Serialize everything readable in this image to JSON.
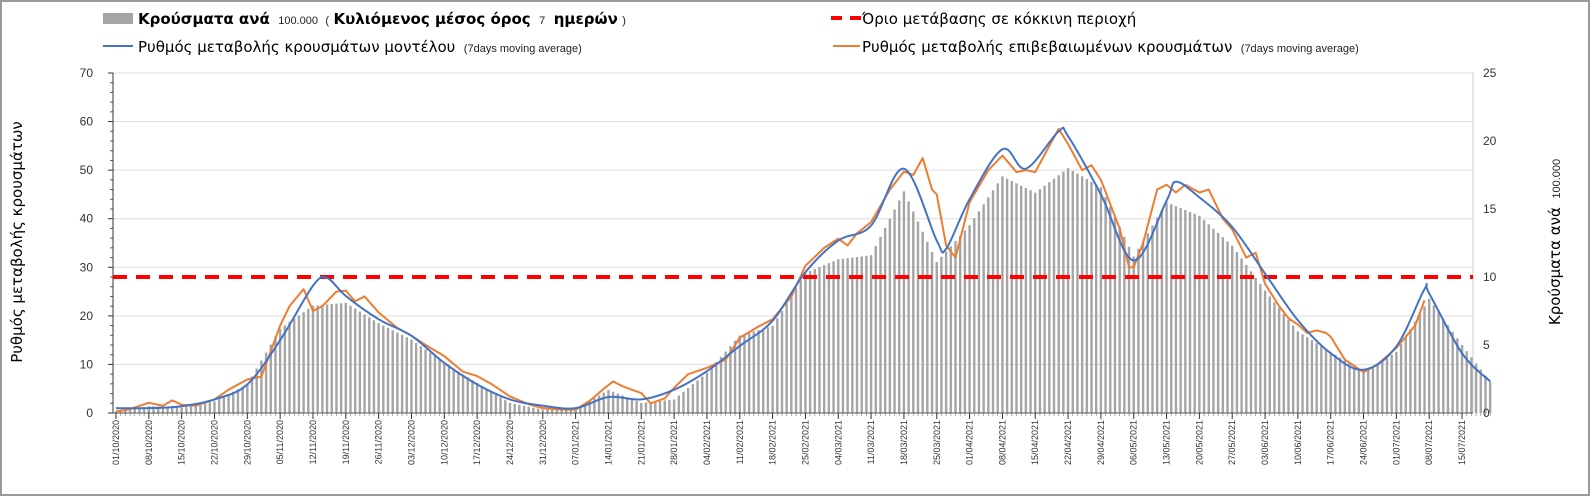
{
  "chart_data": {
    "type": "bar+line",
    "legend": {
      "bars": {
        "a": "Κρούσματα ανά",
        "b": "100.000",
        "c": "(",
        "d": "Κυλιόμενος μέσος όρος",
        "e": "7",
        "f": "ημερών",
        "g": ")"
      },
      "threshold": "Όριο μετάβασης σε κόκκινη περιοχή",
      "model": {
        "main": "Ρυθμός μεταβολής κρουσμάτων μοντέλου",
        "note": "(7days moving average)"
      },
      "confirmed": {
        "main": "Ρυθμός μεταβολής επιβεβαιωμένων κρουσμάτων",
        "note": "(7days moving average)"
      }
    },
    "ylabel_left": "Ρυθμός μεταβολής κρουσμάτων",
    "ylabel_right": {
      "main": "Κρούσματα ανά",
      "small": "100.000"
    },
    "ylim_left": [
      0,
      70
    ],
    "yticks_left": [
      "0",
      "10",
      "20",
      "30",
      "40",
      "50",
      "60",
      "70"
    ],
    "ylim_right": [
      0,
      25
    ],
    "yticks_right": [
      "0",
      "5",
      "10",
      "15",
      "20",
      "25"
    ],
    "threshold_left": 28,
    "x_day_range": [
      0,
      293
    ],
    "x_ticks": [
      "01/10/2020",
      "08/10/2020",
      "15/10/2020",
      "22/10/2020",
      "29/10/2020",
      "05/11/2020",
      "12/11/2020",
      "19/11/2020",
      "26/11/2020",
      "03/12/2020",
      "10/12/2020",
      "17/12/2020",
      "24/12/2020",
      "31/12/2020",
      "07/01/2021",
      "14/01/2021",
      "21/01/2021",
      "28/01/2021",
      "04/02/2021",
      "11/02/2021",
      "18/02/2021",
      "25/02/2021",
      "04/03/2021",
      "11/03/2021",
      "18/03/2021",
      "25/03/2021",
      "01/04/2021",
      "08/04/2021",
      "15/04/2021",
      "22/04/2021",
      "29/04/2021",
      "06/05/2021",
      "13/05/2021",
      "20/05/2021",
      "27/05/2021",
      "03/06/2021",
      "10/06/2021",
      "17/06/2021",
      "24/06/2021",
      "01/07/2021",
      "08/07/2021",
      "15/07/2021"
    ],
    "bars_cases_per_100k_weekly": {
      "days": [
        0,
        7,
        14,
        21,
        28,
        35,
        42,
        49,
        56,
        63,
        70,
        77,
        84,
        91,
        98,
        105,
        112,
        119,
        126,
        133,
        140,
        147,
        154,
        161,
        168,
        175,
        182,
        189,
        196,
        203,
        210,
        217,
        224,
        231,
        238,
        245,
        252,
        259,
        266,
        273,
        280,
        287,
        293
      ],
      "values": [
        0.1,
        0.5,
        0.4,
        0.86,
        2.1,
        6.2,
        7.9,
        8.1,
        6.6,
        5.4,
        3.7,
        2.2,
        0.74,
        0.25,
        0.3,
        1.7,
        0.74,
        1.0,
        2.96,
        5.7,
        6.4,
        10.3,
        11.3,
        11.6,
        16.3,
        11.1,
        13.8,
        17.4,
        16.2,
        18,
        16.6,
        11.5,
        15.5,
        14.5,
        12.3,
        9,
        6,
        4.5,
        3,
        4.5,
        8.4,
        5,
        2.3
      ]
    },
    "series": [
      {
        "name": "model",
        "color": "#4472c4",
        "points": [
          [
            0,
            1.0
          ],
          [
            7,
            1.0
          ],
          [
            14,
            1.4
          ],
          [
            21,
            2.8
          ],
          [
            28,
            5.9
          ],
          [
            35,
            15
          ],
          [
            42,
            26.2
          ],
          [
            45,
            27.8
          ],
          [
            49,
            24.1
          ],
          [
            56,
            19.3
          ],
          [
            63,
            15.9
          ],
          [
            70,
            10.3
          ],
          [
            77,
            5.9
          ],
          [
            84,
            2.8
          ],
          [
            91,
            1.5
          ],
          [
            98,
            1.0
          ],
          [
            105,
            3.3
          ],
          [
            112,
            2.8
          ],
          [
            119,
            4.8
          ],
          [
            126,
            8.6
          ],
          [
            133,
            13.8
          ],
          [
            140,
            19
          ],
          [
            147,
            29
          ],
          [
            154,
            35.5
          ],
          [
            161,
            38.6
          ],
          [
            168,
            50.3
          ],
          [
            175,
            35.5
          ],
          [
            177,
            33.8
          ],
          [
            182,
            44
          ],
          [
            189,
            54.3
          ],
          [
            194,
            50.3
          ],
          [
            201,
            58
          ],
          [
            203,
            57
          ],
          [
            210,
            45
          ],
          [
            217,
            31.4
          ],
          [
            224,
            43.7
          ],
          [
            226,
            47.6
          ],
          [
            231,
            44.4
          ],
          [
            238,
            38.3
          ],
          [
            245,
            28.7
          ],
          [
            252,
            19.1
          ],
          [
            259,
            12.3
          ],
          [
            266,
            8.9
          ],
          [
            273,
            13.7
          ],
          [
            279,
            25.5
          ],
          [
            280,
            24.6
          ],
          [
            287,
            12.3
          ],
          [
            293,
            6.5
          ]
        ]
      },
      {
        "name": "confirmed",
        "color": "#ed7d31",
        "points": [
          [
            0,
            0.3
          ],
          [
            3,
            0.8
          ],
          [
            7,
            2.1
          ],
          [
            10,
            1.5
          ],
          [
            12,
            2.6
          ],
          [
            14,
            1.7
          ],
          [
            17,
            1.5
          ],
          [
            21,
            2.8
          ],
          [
            24,
            4.8
          ],
          [
            28,
            6.9
          ],
          [
            31,
            7.5
          ],
          [
            35,
            18
          ],
          [
            37,
            22
          ],
          [
            40,
            25.5
          ],
          [
            42,
            21
          ],
          [
            44,
            22
          ],
          [
            47,
            25
          ],
          [
            49,
            25.2
          ],
          [
            51,
            23
          ],
          [
            53,
            24
          ],
          [
            56,
            20.7
          ],
          [
            60,
            17.5
          ],
          [
            63,
            15.9
          ],
          [
            66,
            14
          ],
          [
            70,
            11.7
          ],
          [
            74,
            8.5
          ],
          [
            77,
            7.6
          ],
          [
            80,
            6
          ],
          [
            84,
            3.4
          ],
          [
            88,
            1.8
          ],
          [
            91,
            1.0
          ],
          [
            95,
            0.7
          ],
          [
            98,
            0.7
          ],
          [
            101,
            2.5
          ],
          [
            104,
            5
          ],
          [
            106,
            6.5
          ],
          [
            108,
            5.5
          ],
          [
            112,
            4.1
          ],
          [
            114,
            2
          ],
          [
            117,
            3
          ],
          [
            119,
            5.2
          ],
          [
            122,
            8
          ],
          [
            126,
            9.3
          ],
          [
            130,
            11
          ],
          [
            133,
            15.5
          ],
          [
            137,
            17.8
          ],
          [
            140,
            19.3
          ],
          [
            144,
            24
          ],
          [
            147,
            30.3
          ],
          [
            151,
            34
          ],
          [
            154,
            35.9
          ],
          [
            156,
            34.5
          ],
          [
            158,
            37
          ],
          [
            161,
            39.3
          ],
          [
            165,
            46
          ],
          [
            168,
            49.7
          ],
          [
            170,
            49
          ],
          [
            172,
            52.5
          ],
          [
            174,
            46
          ],
          [
            175,
            45
          ],
          [
            177,
            34.5
          ],
          [
            179,
            32
          ],
          [
            182,
            43.4
          ],
          [
            186,
            50
          ],
          [
            189,
            53
          ],
          [
            192,
            49.6
          ],
          [
            194,
            50
          ],
          [
            196,
            49.6
          ],
          [
            199,
            55
          ],
          [
            201,
            58.5
          ],
          [
            203,
            55.4
          ],
          [
            206,
            50
          ],
          [
            208,
            51
          ],
          [
            210,
            48
          ],
          [
            214,
            38
          ],
          [
            216,
            30
          ],
          [
            217,
            30
          ],
          [
            219,
            35
          ],
          [
            222,
            46
          ],
          [
            224,
            47
          ],
          [
            226,
            45.4
          ],
          [
            228,
            47
          ],
          [
            231,
            45.4
          ],
          [
            233,
            46
          ],
          [
            236,
            40
          ],
          [
            238,
            37.8
          ],
          [
            241,
            32
          ],
          [
            243,
            33
          ],
          [
            245,
            26.6
          ],
          [
            248,
            22
          ],
          [
            250,
            19.5
          ],
          [
            252,
            18.2
          ],
          [
            254,
            16.5
          ],
          [
            256,
            17
          ],
          [
            258,
            16.5
          ],
          [
            259,
            15.7
          ],
          [
            262,
            11
          ],
          [
            266,
            8.4
          ],
          [
            269,
            10
          ],
          [
            273,
            13.4
          ],
          [
            277,
            18
          ],
          [
            279,
            23.2
          ]
        ]
      }
    ],
    "colors": {
      "bars": "#a5a5a5",
      "threshold": "#ff0000",
      "grid": "#dddddd"
    }
  }
}
